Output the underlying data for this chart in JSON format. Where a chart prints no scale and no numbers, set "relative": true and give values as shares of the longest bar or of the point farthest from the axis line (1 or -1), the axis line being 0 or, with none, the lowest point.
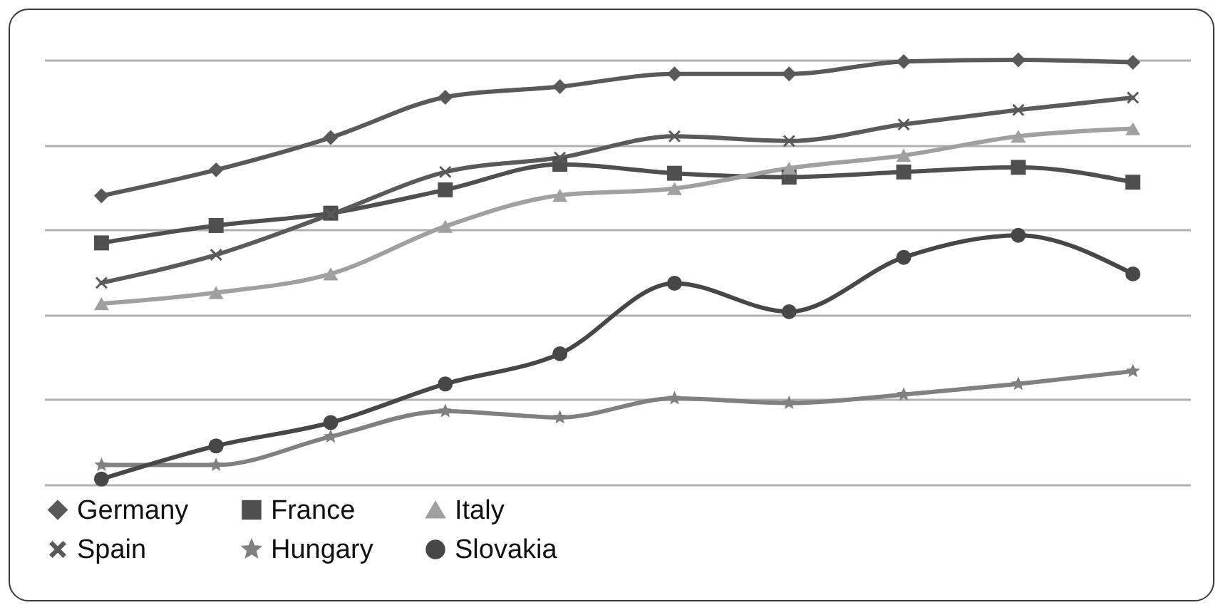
{
  "chart_data": {
    "type": "line",
    "relative": true,
    "grid": "y",
    "legend": "bottom",
    "line_style": "solid",
    "categories": [
      null,
      null,
      null,
      null,
      null,
      null,
      null,
      null,
      null,
      null
    ],
    "series": [
      {
        "name": "Germany",
        "color": "#595959",
        "marker": "diamond",
        "values": [
          0.68,
          0.741,
          0.817,
          0.912,
          0.937,
          0.967,
          0.967,
          0.996,
          1,
          0.994
        ]
      },
      {
        "name": "France",
        "color": "#4f4f4f",
        "marker": "square",
        "values": [
          0.569,
          0.61,
          0.639,
          0.694,
          0.754,
          0.733,
          0.724,
          0.736,
          0.747,
          0.712
        ]
      },
      {
        "name": "Italy",
        "color": "#a0a0a0",
        "marker": "triangle",
        "values": [
          0.426,
          0.452,
          0.496,
          0.608,
          0.681,
          0.697,
          0.745,
          0.775,
          0.82,
          0.838
        ]
      },
      {
        "name": "Spain",
        "color": "#5a5a5a",
        "marker": "cross",
        "values": [
          0.475,
          0.541,
          0.636,
          0.736,
          0.77,
          0.82,
          0.809,
          0.848,
          0.882,
          0.911
        ]
      },
      {
        "name": "Hungary",
        "color": "#808080",
        "marker": "star",
        "values": [
          0.046,
          0.046,
          0.113,
          0.173,
          0.158,
          0.203,
          0.192,
          0.212,
          0.237,
          0.267
        ]
      },
      {
        "name": "Slovakia",
        "color": "#474747",
        "marker": "circle",
        "values": [
          0.013,
          0.091,
          0.146,
          0.237,
          0.308,
          0.474,
          0.407,
          0.535,
          0.587,
          0.496
        ]
      }
    ]
  }
}
